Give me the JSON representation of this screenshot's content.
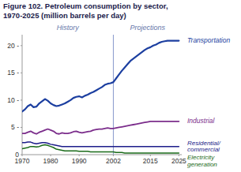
{
  "chart_data": {
    "type": "line",
    "title": "Figure 102. Petroleum consumption by sector,",
    "subtitle": "1970-2025 (million barrels per day)",
    "grid": false,
    "divider": {
      "x": 2002,
      "left_label": "History",
      "right_label": "Projections"
    },
    "xlim": [
      1970,
      2026
    ],
    "ylim": [
      0,
      22
    ],
    "xticks": [
      1970,
      1980,
      1990,
      2002,
      2015,
      2025
    ],
    "yticks": [
      0,
      {
        "value": 5,
        "label": "5 -"
      },
      {
        "value": 10,
        "label": "10 -"
      },
      {
        "value": 15,
        "label": "15 -"
      },
      {
        "value": 20,
        "label": "20 -"
      }
    ],
    "x": [
      1970,
      1971,
      1972,
      1973,
      1974,
      1975,
      1976,
      1977,
      1978,
      1979,
      1980,
      1981,
      1982,
      1983,
      1984,
      1985,
      1986,
      1987,
      1988,
      1989,
      1990,
      1991,
      1992,
      1993,
      1994,
      1995,
      1996,
      1997,
      1998,
      1999,
      2000,
      2001,
      2002,
      2003,
      2004,
      2005,
      2006,
      2007,
      2008,
      2009,
      2010,
      2011,
      2012,
      2013,
      2014,
      2015,
      2016,
      2017,
      2018,
      2019,
      2020,
      2021,
      2022,
      2023,
      2024,
      2025
    ],
    "series": [
      {
        "name": "Transportation",
        "color": "#1c3fa0",
        "values": [
          7.9,
          8.3,
          8.9,
          9.2,
          8.7,
          8.8,
          9.4,
          9.8,
          10.2,
          9.9,
          9.4,
          9.1,
          8.9,
          9.0,
          9.2,
          9.4,
          9.7,
          10.0,
          10.4,
          10.6,
          10.7,
          10.5,
          10.8,
          11.0,
          11.3,
          11.5,
          11.8,
          12.1,
          12.4,
          12.8,
          13.0,
          13.1,
          13.3,
          14.0,
          14.7,
          15.4,
          16.0,
          16.6,
          17.2,
          17.6,
          18.0,
          18.4,
          18.8,
          19.2,
          19.5,
          19.7,
          20.0,
          20.2,
          20.5,
          20.7,
          20.8,
          20.9,
          20.9,
          20.9,
          20.9,
          20.9
        ]
      },
      {
        "name": "Industrial",
        "color": "#7b2d8b",
        "values": [
          3.9,
          3.9,
          4.1,
          4.3,
          4.0,
          3.8,
          4.1,
          4.3,
          4.5,
          4.7,
          4.5,
          4.3,
          3.9,
          3.8,
          4.0,
          3.9,
          3.9,
          4.0,
          4.2,
          4.3,
          4.1,
          4.0,
          4.1,
          4.2,
          4.3,
          4.5,
          4.6,
          4.7,
          4.7,
          4.8,
          4.9,
          4.8,
          4.8,
          4.9,
          5.0,
          5.1,
          5.2,
          5.3,
          5.4,
          5.5,
          5.6,
          5.7,
          5.8,
          5.9,
          6.0,
          6.1,
          6.1,
          6.1,
          6.1,
          6.1,
          6.1,
          6.1,
          6.1,
          6.1,
          6.1,
          6.1
        ]
      },
      {
        "name": "Residential/\ncommercial",
        "color": "#1c1c8a",
        "values": [
          2.2,
          2.2,
          2.3,
          2.3,
          2.1,
          2.0,
          2.1,
          2.2,
          2.2,
          2.1,
          1.9,
          1.8,
          1.7,
          1.6,
          1.5,
          1.5,
          1.5,
          1.5,
          1.5,
          1.5,
          1.5,
          1.5,
          1.5,
          1.5,
          1.5,
          1.5,
          1.5,
          1.5,
          1.5,
          1.5,
          1.5,
          1.5,
          1.5,
          1.5,
          1.5,
          1.5,
          1.5,
          1.5,
          1.5,
          1.5,
          1.5,
          1.5,
          1.5,
          1.5,
          1.5,
          1.5,
          1.5,
          1.5,
          1.5,
          1.5,
          1.5,
          1.5,
          1.5,
          1.5,
          1.5,
          1.5
        ]
      },
      {
        "name": "Electricity\ngeneration",
        "color": "#1a6b1a",
        "values": [
          1.1,
          1.2,
          1.3,
          1.5,
          1.5,
          1.4,
          1.5,
          1.7,
          1.8,
          1.7,
          1.5,
          1.3,
          1.0,
          0.9,
          0.8,
          0.7,
          0.7,
          0.7,
          0.7,
          0.7,
          0.6,
          0.6,
          0.6,
          0.6,
          0.5,
          0.5,
          0.5,
          0.5,
          0.5,
          0.5,
          0.5,
          0.5,
          0.5,
          0.4,
          0.4,
          0.4,
          0.3,
          0.3,
          0.3,
          0.3,
          0.3,
          0.3,
          0.3,
          0.3,
          0.3,
          0.3,
          0.3,
          0.3,
          0.3,
          0.3,
          0.3,
          0.3,
          0.3,
          0.3,
          0.3,
          0.3
        ]
      }
    ]
  }
}
